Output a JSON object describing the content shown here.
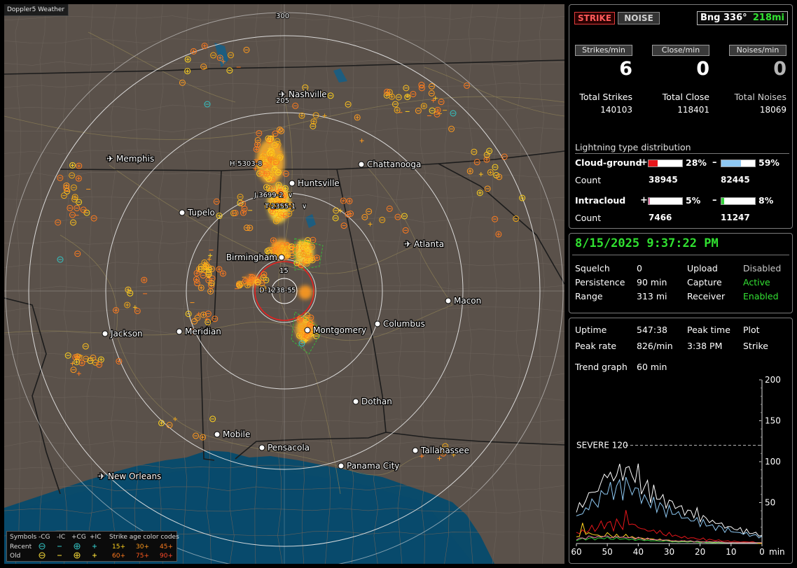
{
  "app": {
    "title": "Doppler5 Weather"
  },
  "map": {
    "cities": [
      {
        "name": "Nashville",
        "icon": "airport-icon"
      },
      {
        "name": "Memphis",
        "icon": "airport-icon"
      },
      {
        "name": "Chattanooga",
        "icon": "city-dot-icon"
      },
      {
        "name": "Huntsville",
        "icon": "city-dot-icon"
      },
      {
        "name": "Tupelo",
        "icon": "city-dot-icon"
      },
      {
        "name": "Atlanta",
        "icon": "airport-icon"
      },
      {
        "name": "Birmingham",
        "icon": "city-dot-icon"
      },
      {
        "name": "Macon",
        "icon": "city-dot-icon"
      },
      {
        "name": "Jackson",
        "icon": "city-dot-icon"
      },
      {
        "name": "Meridian",
        "icon": "city-dot-icon"
      },
      {
        "name": "Montgomery",
        "icon": "city-dot-icon"
      },
      {
        "name": "Columbus",
        "icon": "city-dot-icon"
      },
      {
        "name": "Dothan",
        "icon": "city-dot-icon"
      },
      {
        "name": "Mobile",
        "icon": "city-dot-icon"
      },
      {
        "name": "Pensacola",
        "icon": "city-dot-icon"
      },
      {
        "name": "Tallahassee",
        "icon": "city-dot-icon"
      },
      {
        "name": "Panama City",
        "icon": "city-dot-icon"
      },
      {
        "name": "New Orleans",
        "icon": "airport-icon"
      }
    ],
    "range_labels": [
      "300",
      "205",
      "15",
      "5"
    ],
    "storm_labels": [
      "H-5303-8",
      "J-3699-2",
      "T-2355-1",
      "D-1238-5"
    ],
    "storm_suffixes": [
      "∨",
      "∨"
    ],
    "legend": {
      "symbols_label": "Symbols",
      "recent_label": "Recent",
      "old_label": "Old",
      "columns": [
        "-CG",
        "-IC",
        "+CG",
        "+IC"
      ],
      "age_title": "Strike age color codes",
      "recent_ages": [
        "15+",
        "30+",
        "45+"
      ],
      "old_ages": [
        "60+",
        "75+",
        "90+"
      ],
      "age_colors": [
        "#ffd21e",
        "#ff9a1e",
        "#ff7c1e",
        "#ff7a1e",
        "#ff5a1e",
        "#ff4a2a"
      ]
    }
  },
  "status": {
    "strike_button": "STRIKE",
    "noise_button": "NOISE",
    "bearing": "Bng 336°",
    "distance": "218mi",
    "rates": [
      {
        "label": "Strikes/min",
        "value": "6"
      },
      {
        "label": "Close/min",
        "value": "0"
      },
      {
        "label": "Noises/min",
        "value": "0"
      }
    ],
    "totals": [
      {
        "label": "Total Strikes",
        "value": "140103"
      },
      {
        "label": "Total Close",
        "value": "118401"
      },
      {
        "label": "Total Noises",
        "value": "18069"
      }
    ],
    "distribution": {
      "title": "Lightning type distribution",
      "cloud_ground_label": "Cloud-ground",
      "intracloud_label": "Intracloud",
      "count_label": "Count",
      "plus_sign": "+",
      "minus_sign": "–",
      "cg_plus_pct": "28%",
      "cg_plus_fraction": 0.28,
      "cg_minus_pct": "59%",
      "cg_minus_fraction": 0.59,
      "cg_plus_count": "38945",
      "cg_minus_count": "82445",
      "ic_plus_pct": "5%",
      "ic_plus_fraction": 0.05,
      "ic_minus_pct": "8%",
      "ic_minus_fraction": 0.08,
      "ic_plus_count": "7466",
      "ic_minus_count": "11247",
      "colors": {
        "cg_plus": "#e8161b",
        "cg_minus": "#8ec8f2",
        "ic_plus": "#e377a8",
        "ic_minus": "#35d43b"
      }
    }
  },
  "settings": {
    "datetime": "8/15/2025 9:37:22 PM",
    "rows": [
      {
        "k1": "Squelch",
        "v1": "0",
        "k2": "Upload",
        "v2": "Disabled"
      },
      {
        "k1": "Persistence",
        "v1": "90 min",
        "k2": "Capture",
        "v2": "Active"
      },
      {
        "k1": "Range",
        "v1": "313 mi",
        "k2": "Receiver",
        "v2": "Enabled"
      }
    ]
  },
  "trend": {
    "uptime_label": "Uptime",
    "uptime_value": "547:38",
    "peak_time_label": "Peak time",
    "plot_label": "Plot",
    "peak_rate_label": "Peak rate",
    "peak_rate_value": "826/min",
    "peak_time_value": "3:38 PM",
    "plot_value": "Strike",
    "trend_graph_label": "Trend graph",
    "trend_graph_value": "60 min",
    "severe_label": "SEVERE 120",
    "chart_data": {
      "type": "line",
      "x_ticks": [
        "60",
        "50",
        "40",
        "30",
        "20",
        "10",
        "0"
      ],
      "x_unit": "min",
      "y_ticks": [
        "200",
        "150",
        "100",
        "50"
      ],
      "ylim": [
        0,
        200
      ],
      "xlim": [
        60,
        0
      ],
      "severe_threshold": 120,
      "series": [
        {
          "color": "#ffffff",
          "values": [
            38,
            45,
            52,
            48,
            60,
            72,
            55,
            68,
            80,
            74,
            92,
            85,
            70,
            98,
            88,
            76,
            105,
            82,
            90,
            78,
            86,
            70,
            66,
            72,
            58,
            64,
            55,
            60,
            52,
            48,
            54,
            46,
            50,
            42,
            44,
            40,
            36,
            42,
            34,
            38,
            30,
            34,
            28,
            30,
            26,
            24,
            28,
            22,
            20,
            22,
            18,
            20,
            16,
            18,
            14,
            16,
            12,
            14,
            12,
            10,
            10
          ]
        },
        {
          "color": "#8ec8f2",
          "values": [
            30,
            36,
            40,
            38,
            46,
            55,
            44,
            52,
            60,
            58,
            70,
            66,
            56,
            76,
            68,
            60,
            80,
            64,
            70,
            62,
            66,
            56,
            52,
            56,
            46,
            50,
            44,
            48,
            42,
            38,
            42,
            36,
            40,
            34,
            34,
            32,
            28,
            32,
            26,
            30,
            24,
            26,
            22,
            24,
            20,
            18,
            22,
            18,
            16,
            18,
            14,
            16,
            12,
            14,
            12,
            12,
            10,
            10,
            10,
            8,
            8
          ]
        },
        {
          "color": "#e8161b",
          "values": [
            12,
            14,
            16,
            12,
            18,
            20,
            15,
            22,
            24,
            20,
            26,
            24,
            18,
            28,
            22,
            20,
            36,
            24,
            26,
            20,
            22,
            18,
            16,
            18,
            14,
            16,
            14,
            14,
            12,
            10,
            12,
            10,
            10,
            8,
            8,
            8,
            6,
            8,
            6,
            6,
            5,
            6,
            4,
            5,
            4,
            4,
            4,
            3,
            3,
            3,
            2,
            3,
            2,
            2,
            2,
            2,
            2,
            2,
            1,
            1,
            1
          ]
        },
        {
          "color": "#ffd21e",
          "values": [
            8,
            10,
            22,
            12,
            14,
            10,
            12,
            10,
            8,
            10,
            12,
            10,
            8,
            10,
            8,
            8,
            10,
            8,
            8,
            6,
            8,
            6,
            6,
            6,
            5,
            6,
            4,
            5,
            4,
            4,
            4,
            3,
            3,
            3,
            3,
            3,
            2,
            3,
            2,
            2,
            2,
            2,
            2,
            2,
            2,
            1,
            2,
            1,
            1,
            1,
            1,
            1,
            1,
            1,
            1,
            1,
            1,
            1,
            1,
            0,
            0
          ]
        },
        {
          "color": "#35d43b",
          "values": [
            4,
            5,
            6,
            5,
            6,
            7,
            5,
            6,
            7,
            6,
            7,
            6,
            5,
            7,
            6,
            5,
            6,
            5,
            5,
            4,
            5,
            4,
            4,
            4,
            3,
            4,
            3,
            3,
            3,
            3,
            3,
            2,
            2,
            2,
            2,
            2,
            2,
            2,
            2,
            2,
            1,
            2,
            1,
            1,
            1,
            1,
            1,
            1,
            1,
            1,
            1,
            1,
            1,
            1,
            1,
            1,
            1,
            1,
            1,
            1,
            1
          ]
        },
        {
          "color": "#e377a8",
          "values": [
            5,
            6,
            7,
            6,
            8,
            9,
            7,
            8,
            9,
            8,
            9,
            8,
            7,
            9,
            8,
            7,
            8,
            7,
            7,
            6,
            7,
            6,
            5,
            6,
            5,
            5,
            4,
            5,
            4,
            4,
            4,
            3,
            3,
            3,
            3,
            3,
            3,
            3,
            2,
            3,
            2,
            2,
            2,
            2,
            2,
            2,
            2,
            2,
            1,
            1,
            1,
            1,
            1,
            1,
            1,
            1,
            1,
            1,
            1,
            1,
            1
          ]
        }
      ]
    }
  }
}
